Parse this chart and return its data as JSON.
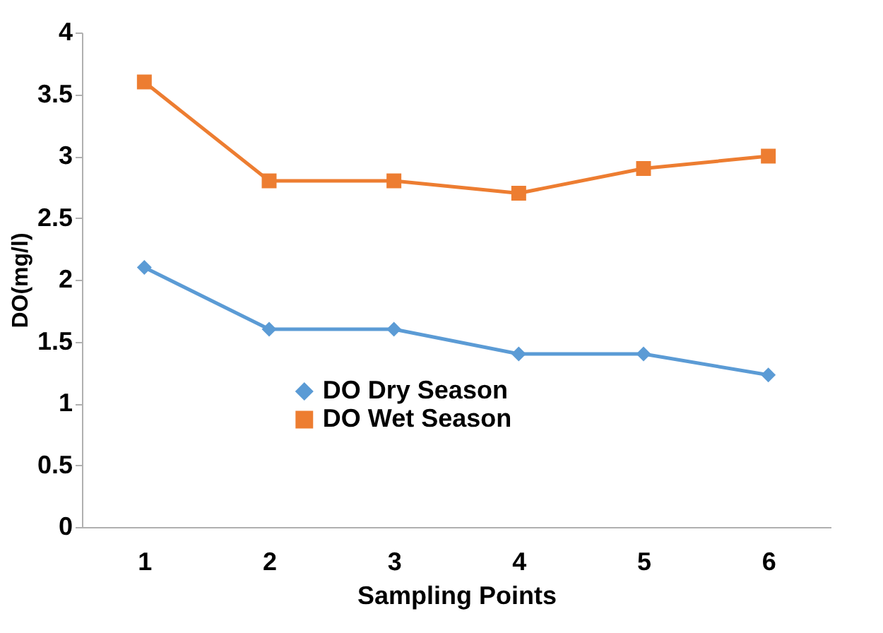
{
  "chart_data": {
    "type": "line",
    "xlabel": "Sampling Points",
    "ylabel": "DO(mg/l)",
    "categories": [
      "1",
      "2",
      "3",
      "4",
      "5",
      "6"
    ],
    "series": [
      {
        "name": "DO Dry Season",
        "color": "#5b9bd5",
        "marker": "diamond",
        "values": [
          2.1,
          1.6,
          1.6,
          1.4,
          1.4,
          1.23
        ]
      },
      {
        "name": "DO Wet Season",
        "color": "#ed7d31",
        "marker": "square",
        "values": [
          3.6,
          2.8,
          2.8,
          2.7,
          2.9,
          3.0
        ]
      }
    ],
    "ylim": [
      0,
      4
    ],
    "yticks": [
      0,
      0.5,
      1,
      1.5,
      2,
      2.5,
      3,
      3.5,
      4
    ],
    "grid": false,
    "legend": "bottom",
    "line_style": "solid"
  }
}
